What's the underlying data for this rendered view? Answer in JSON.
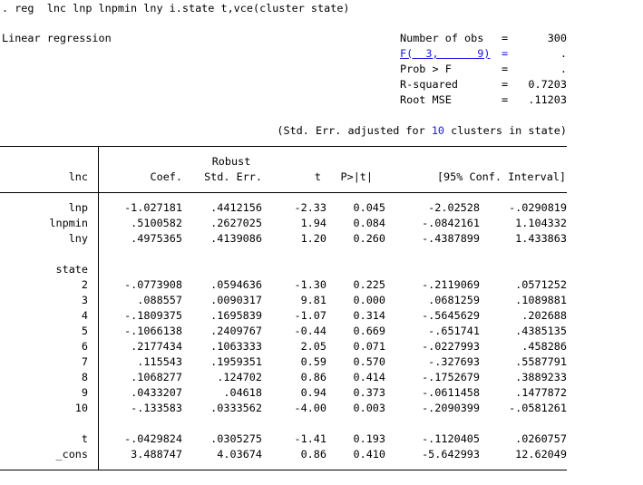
{
  "command": ". reg  lnc lnp lnpmin lny i.state t,vce(cluster state)",
  "model_title": "Linear regression",
  "stats": [
    {
      "label": "Number of obs",
      "eq": "=",
      "value": "300"
    },
    {
      "label": "F(  3,      9)",
      "eq": "=",
      "value": "."
    },
    {
      "label": "Prob > F",
      "eq": "=",
      "value": "."
    },
    {
      "label": "R-squared",
      "eq": "=",
      "value": "0.7203"
    },
    {
      "label": "Root MSE",
      "eq": "=",
      "value": ".11203"
    }
  ],
  "cluster_note": {
    "prefix": "(Std. Err. adjusted for ",
    "n": "10",
    "suffix": " clusters in state)"
  },
  "header": {
    "depvar": "lnc",
    "robust": "Robust",
    "coef": "Coef.",
    "se": "Std. Err.",
    "t": "t",
    "p": "P>|t|",
    "ci": "[95% Conf. Interval]"
  },
  "rows": [
    {
      "name": "lnp",
      "coef": "-1.027181",
      "se": ".4412156",
      "t": "-2.33",
      "p": "0.045",
      "lo": "-2.02528",
      "hi": "-.0290819"
    },
    {
      "name": "lnpmin",
      "coef": ".5100582",
      "se": ".2627025",
      "t": "1.94",
      "p": "0.084",
      "lo": "-.0842161",
      "hi": "1.104332"
    },
    {
      "name": "lny",
      "coef": ".4975365",
      "se": ".4139086",
      "t": "1.20",
      "p": "0.260",
      "lo": "-.4387899",
      "hi": "1.433863"
    },
    {
      "name": "state",
      "coef": "",
      "se": "",
      "t": "",
      "p": "",
      "lo": "",
      "hi": ""
    },
    {
      "name": "2",
      "coef": "-.0773908",
      "se": ".0594636",
      "t": "-1.30",
      "p": "0.225",
      "lo": "-.2119069",
      "hi": ".0571252"
    },
    {
      "name": "3",
      "coef": ".088557",
      "se": ".0090317",
      "t": "9.81",
      "p": "0.000",
      "lo": ".0681259",
      "hi": ".1089881"
    },
    {
      "name": "4",
      "coef": "-.1809375",
      "se": ".1695839",
      "t": "-1.07",
      "p": "0.314",
      "lo": "-.5645629",
      "hi": ".202688"
    },
    {
      "name": "5",
      "coef": "-.1066138",
      "se": ".2409767",
      "t": "-0.44",
      "p": "0.669",
      "lo": "-.651741",
      "hi": ".4385135"
    },
    {
      "name": "6",
      "coef": ".2177434",
      "se": ".1063333",
      "t": "2.05",
      "p": "0.071",
      "lo": "-.0227993",
      "hi": ".458286"
    },
    {
      "name": "7",
      "coef": ".115543",
      "se": ".1959351",
      "t": "0.59",
      "p": "0.570",
      "lo": "-.327693",
      "hi": ".5587791"
    },
    {
      "name": "8",
      "coef": ".1068277",
      "se": ".124702",
      "t": "0.86",
      "p": "0.414",
      "lo": "-.1752679",
      "hi": ".3889233"
    },
    {
      "name": "9",
      "coef": ".0433207",
      "se": ".04618",
      "t": "0.94",
      "p": "0.373",
      "lo": "-.0611458",
      "hi": ".1477872"
    },
    {
      "name": "10",
      "coef": "-.133583",
      "se": ".0333562",
      "t": "-4.00",
      "p": "0.003",
      "lo": "-.2090399",
      "hi": "-.0581261"
    },
    {
      "name": "t",
      "coef": "-.0429824",
      "se": ".0305275",
      "t": "-1.41",
      "p": "0.193",
      "lo": "-.1120405",
      "hi": ".0260757"
    },
    {
      "name": "_cons",
      "coef": "3.488747",
      "se": "4.03674",
      "t": "0.86",
      "p": "0.410",
      "lo": "-5.642993",
      "hi": "12.62049"
    }
  ]
}
